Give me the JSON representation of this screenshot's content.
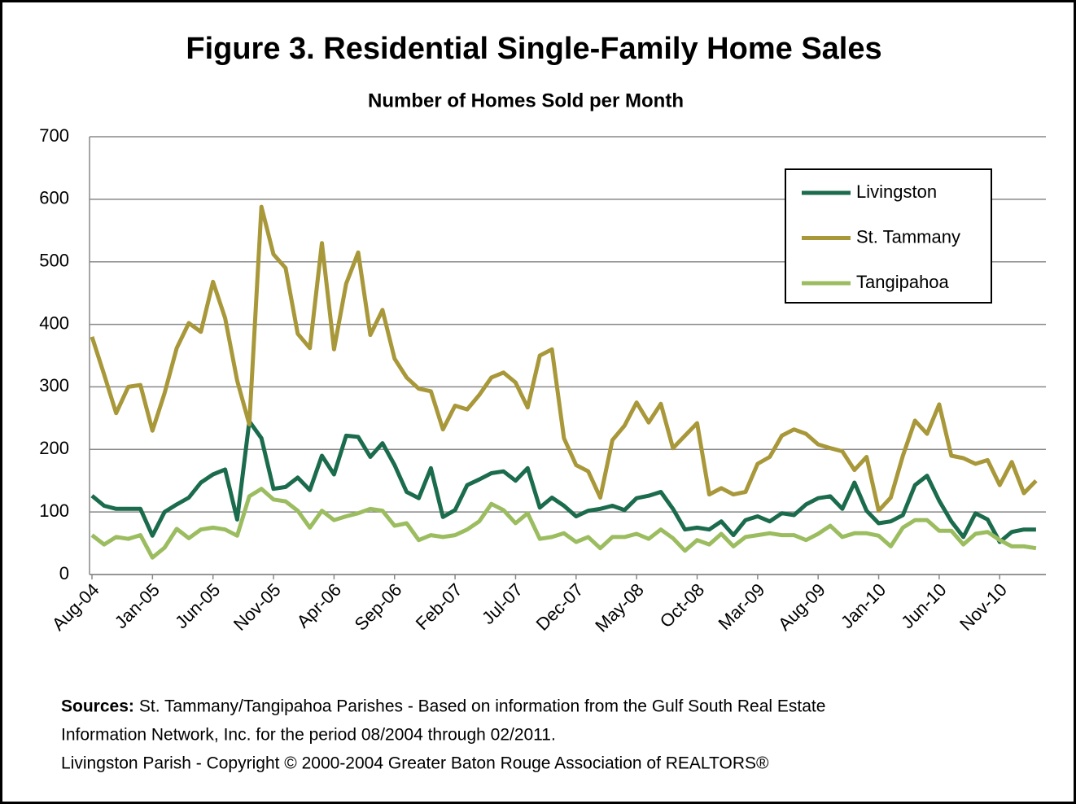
{
  "chart_data": {
    "type": "line",
    "title": "Figure 3. Residential Single-Family Home Sales",
    "subtitle": "Number of Homes Sold per Month",
    "categories": [
      "Aug-04",
      null,
      null,
      null,
      null,
      "Jan-05",
      null,
      null,
      null,
      null,
      "Jun-05",
      null,
      null,
      null,
      null,
      "Nov-05",
      null,
      null,
      null,
      null,
      "Apr-06",
      null,
      null,
      null,
      null,
      "Sep-06",
      null,
      null,
      null,
      null,
      "Feb-07",
      null,
      null,
      null,
      null,
      "Jul-07",
      null,
      null,
      null,
      null,
      "Dec-07",
      null,
      null,
      null,
      null,
      "May-08",
      null,
      null,
      null,
      null,
      "Oct-08",
      null,
      null,
      null,
      null,
      "Mar-09",
      null,
      null,
      null,
      null,
      "Aug-09",
      null,
      null,
      null,
      null,
      "Jan-10",
      null,
      null,
      null,
      null,
      "Jun-10",
      null,
      null,
      null,
      null,
      "Nov-10",
      null,
      null,
      null
    ],
    "series": [
      {
        "name": "Livingston",
        "color": "#1b6b4d",
        "values": [
          126,
          110,
          105,
          105,
          105,
          62,
          100,
          112,
          123,
          147,
          160,
          168,
          88,
          245,
          218,
          137,
          140,
          155,
          135,
          190,
          160,
          222,
          220,
          188,
          210,
          175,
          132,
          122,
          170,
          92,
          103,
          143,
          152,
          162,
          165,
          150,
          170,
          107,
          123,
          110,
          93,
          102,
          105,
          110,
          103,
          122,
          126,
          132,
          105,
          72,
          75,
          72,
          85,
          63,
          87,
          93,
          85,
          98,
          95,
          112,
          122,
          125,
          105,
          147,
          102,
          82,
          85,
          95,
          143,
          158,
          118,
          85,
          60,
          98,
          88,
          52,
          68,
          72,
          72
        ]
      },
      {
        "name": "St. Tammany",
        "color": "#a8983a",
        "values": [
          380,
          320,
          258,
          300,
          303,
          230,
          290,
          362,
          402,
          388,
          468,
          410,
          310,
          240,
          588,
          512,
          490,
          385,
          362,
          530,
          360,
          465,
          515,
          383,
          423,
          345,
          315,
          297,
          293,
          232,
          270,
          264,
          287,
          315,
          323,
          307,
          267,
          350,
          360,
          218,
          175,
          165,
          123,
          215,
          238,
          275,
          243,
          273,
          202,
          222,
          242,
          128,
          138,
          128,
          132,
          177,
          188,
          222,
          232,
          225,
          208,
          202,
          197,
          167,
          188,
          102,
          123,
          190,
          246,
          225,
          272,
          190,
          186,
          177,
          183,
          143,
          180,
          130,
          150
        ]
      },
      {
        "name": "Tangipahoa",
        "color": "#9bbd60",
        "values": [
          63,
          48,
          60,
          57,
          63,
          27,
          43,
          73,
          58,
          72,
          75,
          72,
          62,
          125,
          137,
          120,
          117,
          102,
          75,
          102,
          87,
          93,
          98,
          105,
          102,
          78,
          82,
          55,
          63,
          60,
          63,
          72,
          85,
          113,
          103,
          82,
          98,
          57,
          60,
          66,
          52,
          60,
          42,
          60,
          60,
          65,
          57,
          72,
          58,
          38,
          55,
          48,
          65,
          45,
          60,
          63,
          66,
          63,
          63,
          55,
          65,
          78,
          60,
          66,
          66,
          62,
          45,
          75,
          87,
          87,
          70,
          70,
          48,
          65,
          68,
          55,
          45,
          45,
          42
        ]
      }
    ],
    "ylim": [
      0,
      700
    ],
    "yticks": [
      0,
      100,
      200,
      300,
      400,
      500,
      600,
      700
    ],
    "grid": true,
    "legend": "upper right",
    "source_label": "Sources:",
    "source_lines": [
      "St. Tammany/Tangipahoa Parishes - Based on information from the Gulf South Real Estate",
      "Information Network, Inc. for the period 08/2004 through 02/2011.",
      "Livingston Parish - Copyright © 2000-2004 Greater Baton Rouge Association of REALTORS®"
    ]
  }
}
